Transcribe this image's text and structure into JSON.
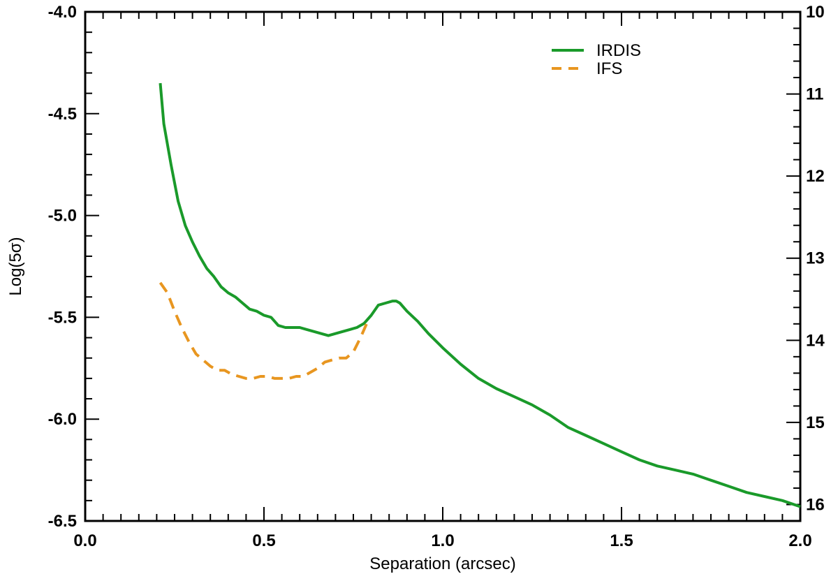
{
  "chart_data": {
    "type": "line",
    "title": "",
    "xlabel": "Separation (arcsec)",
    "ylabel": "Log(5σ)",
    "xlim": [
      0.0,
      2.0
    ],
    "ylim": [
      -6.5,
      -4.0
    ],
    "x_ticks": [
      "0.0",
      "0.5",
      "1.0",
      "1.5",
      "2.0"
    ],
    "x_tick_values": [
      0.0,
      0.5,
      1.0,
      1.5,
      2.0
    ],
    "y_ticks": [
      "-4.0",
      "-4.5",
      "-5.0",
      "-5.5",
      "-6.0",
      "-6.5"
    ],
    "y_tick_values": [
      -4.0,
      -4.5,
      -5.0,
      -5.5,
      -6.0,
      -6.5
    ],
    "y2_ticks": [
      "10",
      "11",
      "12",
      "13",
      "14",
      "15",
      "16"
    ],
    "y2_tick_values": [
      10,
      11,
      12,
      13,
      14,
      15,
      16
    ],
    "y2_lim": [
      10,
      16.2
    ],
    "y2_label": "",
    "grid": false,
    "legend_position": "top-right",
    "series": [
      {
        "name": "IRDIS",
        "color": "#1a9a2a",
        "dash": "solid",
        "x": [
          0.21,
          0.22,
          0.24,
          0.26,
          0.28,
          0.3,
          0.32,
          0.34,
          0.36,
          0.38,
          0.4,
          0.42,
          0.44,
          0.46,
          0.48,
          0.5,
          0.52,
          0.54,
          0.56,
          0.58,
          0.6,
          0.62,
          0.64,
          0.66,
          0.68,
          0.7,
          0.72,
          0.74,
          0.76,
          0.78,
          0.8,
          0.82,
          0.84,
          0.86,
          0.87,
          0.88,
          0.9,
          0.93,
          0.96,
          1.0,
          1.05,
          1.1,
          1.15,
          1.2,
          1.25,
          1.3,
          1.35,
          1.4,
          1.45,
          1.5,
          1.55,
          1.6,
          1.65,
          1.7,
          1.75,
          1.8,
          1.85,
          1.9,
          1.95,
          2.0
        ],
        "y": [
          -4.35,
          -4.55,
          -4.75,
          -4.93,
          -5.05,
          -5.13,
          -5.2,
          -5.26,
          -5.3,
          -5.35,
          -5.38,
          -5.4,
          -5.43,
          -5.46,
          -5.47,
          -5.49,
          -5.5,
          -5.54,
          -5.55,
          -5.55,
          -5.55,
          -5.56,
          -5.57,
          -5.58,
          -5.59,
          -5.58,
          -5.57,
          -5.56,
          -5.55,
          -5.53,
          -5.49,
          -5.44,
          -5.43,
          -5.42,
          -5.42,
          -5.43,
          -5.47,
          -5.52,
          -5.58,
          -5.65,
          -5.73,
          -5.8,
          -5.85,
          -5.89,
          -5.93,
          -5.98,
          -6.04,
          -6.08,
          -6.12,
          -6.16,
          -6.2,
          -6.23,
          -6.25,
          -6.27,
          -6.3,
          -6.33,
          -6.36,
          -6.38,
          -6.4,
          -6.43
        ]
      },
      {
        "name": "IFS",
        "color": "#e89620",
        "dash": "dashed",
        "x": [
          0.21,
          0.23,
          0.25,
          0.27,
          0.29,
          0.31,
          0.33,
          0.35,
          0.37,
          0.39,
          0.41,
          0.43,
          0.45,
          0.47,
          0.49,
          0.51,
          0.53,
          0.55,
          0.57,
          0.59,
          0.61,
          0.63,
          0.65,
          0.67,
          0.69,
          0.71,
          0.73,
          0.75,
          0.77,
          0.79
        ],
        "y": [
          -5.33,
          -5.38,
          -5.47,
          -5.55,
          -5.62,
          -5.68,
          -5.71,
          -5.74,
          -5.76,
          -5.76,
          -5.78,
          -5.79,
          -5.8,
          -5.8,
          -5.79,
          -5.79,
          -5.8,
          -5.8,
          -5.8,
          -5.79,
          -5.79,
          -5.77,
          -5.75,
          -5.72,
          -5.71,
          -5.7,
          -5.7,
          -5.67,
          -5.6,
          -5.52
        ]
      }
    ]
  }
}
